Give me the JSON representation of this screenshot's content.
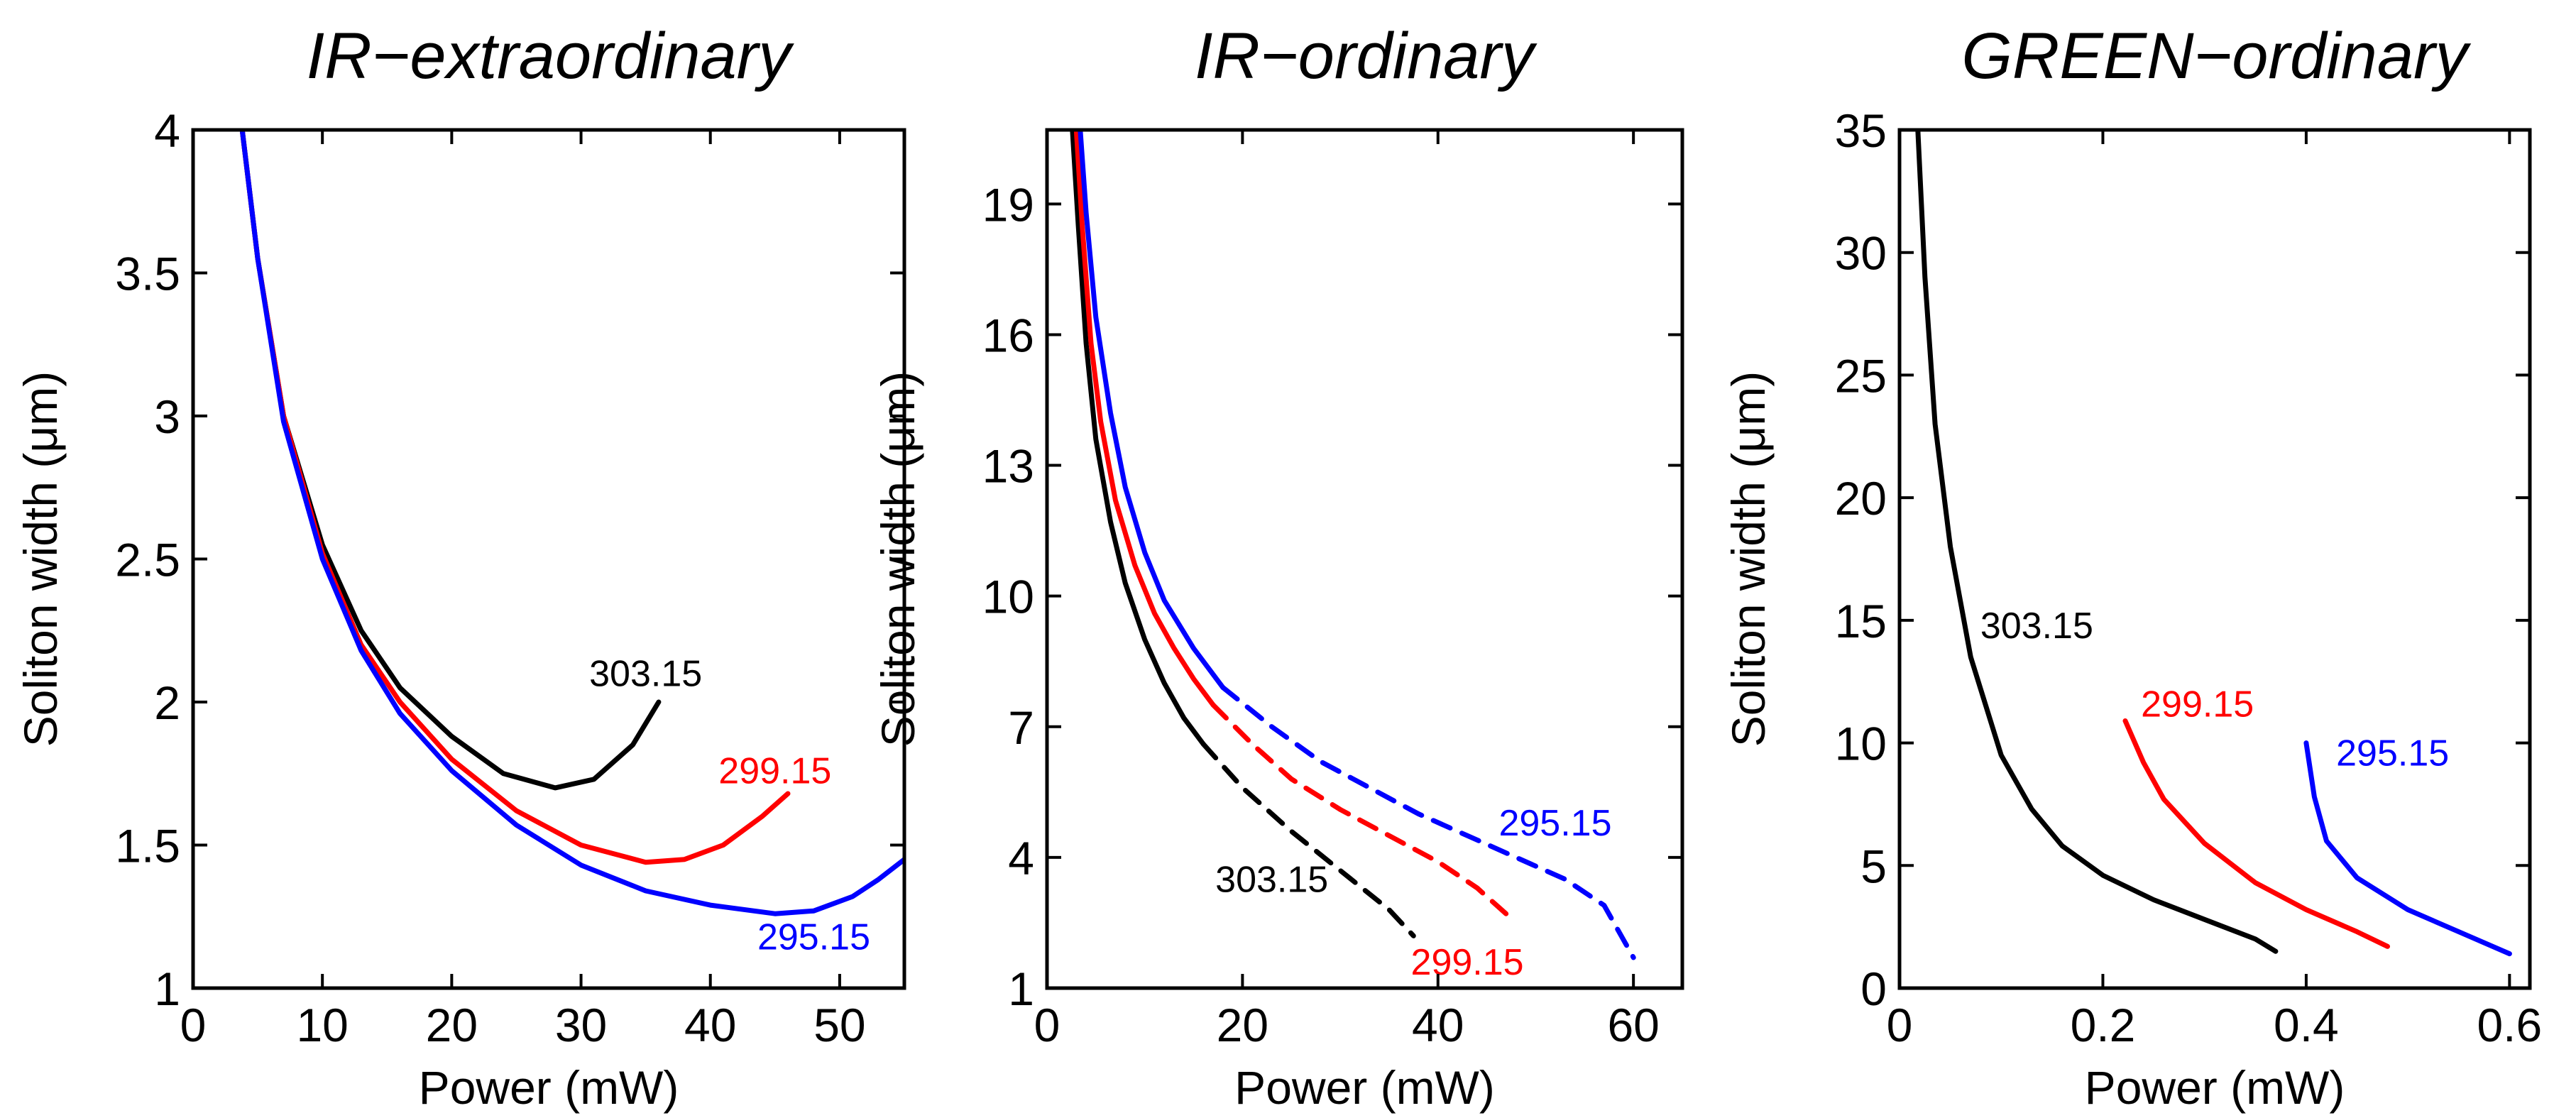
{
  "chart_data": [
    {
      "type": "line",
      "title": "IR−extraordinary",
      "xlabel": "Power (mW)",
      "ylabel": "Soliton width (μm)",
      "xlim": [
        0,
        55
      ],
      "ylim": [
        1,
        4
      ],
      "xticks": [
        0,
        10,
        20,
        30,
        40,
        50
      ],
      "xticklabels": [
        "0",
        "10",
        "20",
        "30",
        "40",
        "50"
      ],
      "yticks": [
        1,
        1.5,
        2,
        2.5,
        3,
        3.5,
        4
      ],
      "yticklabels": [
        "1",
        "1.5",
        "2",
        "2.5",
        "3",
        "3.5",
        "4"
      ],
      "series": [
        {
          "name": "303.15",
          "color": "#000000",
          "segments": [
            {
              "style": "solid",
              "x": [
                3.8,
                5,
                7,
                10,
                13,
                16,
                20,
                24,
                28,
                31,
                34,
                36
              ],
              "y": [
                4.0,
                3.55,
                3.0,
                2.55,
                2.25,
                2.05,
                1.88,
                1.75,
                1.7,
                1.73,
                1.85,
                2.0
              ]
            }
          ],
          "label_x": 35,
          "label_y": 2.1
        },
        {
          "name": "299.15",
          "color": "#ff0000",
          "segments": [
            {
              "style": "solid",
              "x": [
                3.8,
                5,
                7,
                10,
                13,
                16,
                20,
                25,
                30,
                35,
                38,
                41,
                44,
                46
              ],
              "y": [
                4.0,
                3.55,
                3.0,
                2.52,
                2.2,
                2.0,
                1.8,
                1.62,
                1.5,
                1.44,
                1.45,
                1.5,
                1.6,
                1.68
              ]
            }
          ],
          "label_x": 45,
          "label_y": 1.76
        },
        {
          "name": "295.15",
          "color": "#0000ff",
          "segments": [
            {
              "style": "solid",
              "x": [
                3.8,
                5,
                7,
                10,
                13,
                16,
                20,
                25,
                30,
                35,
                40,
                45,
                48,
                51,
                53,
                55
              ],
              "y": [
                4.0,
                3.55,
                2.98,
                2.5,
                2.18,
                1.96,
                1.76,
                1.57,
                1.43,
                1.34,
                1.29,
                1.26,
                1.27,
                1.32,
                1.38,
                1.45
              ]
            }
          ],
          "label_x": 48,
          "label_y": 1.18
        }
      ]
    },
    {
      "type": "line",
      "title": "IR−ordinary",
      "xlabel": "Power (mW)",
      "ylabel": "Soliton width (μm)",
      "xlim": [
        0,
        65
      ],
      "ylim": [
        1,
        20.7
      ],
      "xticks": [
        0,
        20,
        40,
        60
      ],
      "xticklabels": [
        "0",
        "20",
        "40",
        "60"
      ],
      "yticks": [
        1,
        4,
        7,
        10,
        13,
        16,
        19
      ],
      "yticklabels": [
        "1",
        "4",
        "7",
        "10",
        "13",
        "16",
        "19"
      ],
      "series": [
        {
          "name": "303.15",
          "color": "#000000",
          "segments": [
            {
              "style": "solid",
              "x": [
                2.6,
                3.2,
                4,
                5,
                6.5,
                8,
                10,
                12,
                14,
                16
              ],
              "y": [
                20.7,
                18.5,
                15.8,
                13.6,
                11.7,
                10.3,
                9.0,
                8.0,
                7.2,
                6.6
              ]
            },
            {
              "style": "dashed",
              "x": [
                16,
                20,
                25,
                30,
                35,
                37.5
              ],
              "y": [
                6.6,
                5.6,
                4.6,
                3.7,
                2.8,
                2.2
              ]
            }
          ],
          "label_x": 23,
          "label_y": 3.5
        },
        {
          "name": "299.15",
          "color": "#ff0000",
          "segments": [
            {
              "style": "solid",
              "x": [
                3.0,
                3.6,
                4.5,
                5.5,
                7,
                9,
                11,
                13,
                15,
                17
              ],
              "y": [
                20.7,
                18.5,
                15.8,
                14.0,
                12.2,
                10.7,
                9.6,
                8.8,
                8.1,
                7.5
              ]
            },
            {
              "style": "dashed",
              "x": [
                17,
                21,
                25,
                30,
                35,
                40,
                44,
                47
              ],
              "y": [
                7.5,
                6.6,
                5.8,
                5.1,
                4.5,
                3.9,
                3.3,
                2.7
              ]
            }
          ],
          "label_x": 43,
          "label_y": 1.6
        },
        {
          "name": "295.15",
          "color": "#0000ff",
          "segments": [
            {
              "style": "solid",
              "x": [
                3.4,
                4,
                5,
                6.5,
                8,
                10,
                12,
                15,
                18
              ],
              "y": [
                20.7,
                18.8,
                16.4,
                14.2,
                12.5,
                11.0,
                9.9,
                8.8,
                7.9
              ]
            },
            {
              "style": "dashed",
              "x": [
                18,
                23,
                28,
                33,
                38,
                43,
                48,
                53,
                57,
                60
              ],
              "y": [
                7.9,
                7.0,
                6.2,
                5.6,
                5.0,
                4.5,
                4.0,
                3.5,
                2.9,
                1.7
              ]
            }
          ],
          "label_x": 52,
          "label_y": 4.8
        }
      ]
    },
    {
      "type": "line",
      "title": "GREEN−ordinary",
      "xlabel": "Power (mW)",
      "ylabel": "Soliton width (μm)",
      "xlim": [
        0,
        0.62
      ],
      "ylim": [
        0,
        35
      ],
      "xticks": [
        0,
        0.2,
        0.4,
        0.6
      ],
      "xticklabels": [
        "0",
        "0.2",
        "0.4",
        "0.6"
      ],
      "yticks": [
        0,
        5,
        10,
        15,
        20,
        25,
        30,
        35
      ],
      "yticklabels": [
        "0",
        "5",
        "10",
        "15",
        "20",
        "25",
        "30",
        "35"
      ],
      "series": [
        {
          "name": "303.15",
          "color": "#000000",
          "segments": [
            {
              "style": "solid",
              "x": [
                0.018,
                0.025,
                0.035,
                0.05,
                0.07,
                0.1,
                0.13,
                0.16,
                0.2,
                0.25,
                0.3,
                0.35,
                0.37
              ],
              "y": [
                35,
                29,
                23,
                18,
                13.5,
                9.5,
                7.3,
                5.8,
                4.6,
                3.6,
                2.8,
                2.0,
                1.5
              ]
            }
          ],
          "label_x": 0.135,
          "label_y": 14.8
        },
        {
          "name": "299.15",
          "color": "#ff0000",
          "segments": [
            {
              "style": "solid",
              "x": [
                0.222,
                0.24,
                0.26,
                0.3,
                0.35,
                0.4,
                0.45,
                0.48
              ],
              "y": [
                10.9,
                9.2,
                7.7,
                5.9,
                4.3,
                3.2,
                2.3,
                1.7
              ]
            }
          ],
          "label_x": 0.293,
          "label_y": 11.6
        },
        {
          "name": "295.15",
          "color": "#0000ff",
          "segments": [
            {
              "style": "solid",
              "x": [
                0.4,
                0.408,
                0.42,
                0.45,
                0.5,
                0.55,
                0.6
              ],
              "y": [
                10.0,
                7.8,
                6.0,
                4.5,
                3.2,
                2.3,
                1.4
              ]
            }
          ],
          "label_x": 0.485,
          "label_y": 9.6
        }
      ]
    }
  ]
}
